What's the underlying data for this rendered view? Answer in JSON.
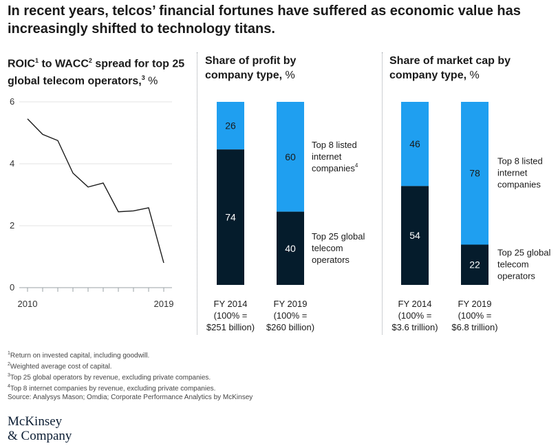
{
  "headline": "In recent years, telcos’ financial fortunes have suffered as economic value has increasingly shifted to technology titans.",
  "panels": {
    "roic": {
      "title_a": "ROIC",
      "sup_a": "1",
      "title_b": " to WACC",
      "sup_b": "2",
      "title_c": " spread for top 25 global telecom operators,",
      "sup_c": "3",
      "unit": " %"
    },
    "profit": {
      "title": "Share of profit by company type,",
      "unit": " %"
    },
    "marketcap": {
      "title": "Share of market cap by company type,",
      "unit": " %"
    }
  },
  "chart_data": [
    {
      "type": "line",
      "title": "ROIC to WACC spread for top 25 global telecom operators, %",
      "x": [
        2010,
        2011,
        2012,
        2013,
        2014,
        2015,
        2016,
        2017,
        2018,
        2019
      ],
      "y": [
        5.45,
        4.95,
        4.75,
        3.7,
        3.25,
        3.38,
        2.45,
        2.48,
        2.58,
        0.8
      ],
      "xticks": [
        "2010",
        "2019"
      ],
      "yticks": [
        0,
        2,
        4,
        6
      ],
      "ylim": [
        0,
        6
      ],
      "grid": true,
      "colors": {
        "line": "#1a1a1a",
        "grid": "#e3e3e3"
      }
    },
    {
      "type": "bar",
      "stacked": true,
      "title": "Share of profit by company type, %",
      "categories": [
        "FY 2014",
        "FY 2019"
      ],
      "category_notes": [
        [
          "(100% =",
          "$251 billion)"
        ],
        [
          "(100% =",
          "$260 billion)"
        ]
      ],
      "series": [
        {
          "name": "Top 25 global telecom operators",
          "values": [
            74,
            40
          ],
          "color": "#051c2c"
        },
        {
          "name": "Top 8 listed internet companies",
          "values": [
            26,
            60
          ],
          "color": "#1f9ff0"
        }
      ],
      "legend": {
        "top": [
          "Top 8 listed",
          "internet",
          "companies"
        ],
        "top_sup": "4",
        "bottom": [
          "Top 25 global",
          "telecom",
          "operators"
        ]
      }
    },
    {
      "type": "bar",
      "stacked": true,
      "title": "Share of market cap by company type, %",
      "categories": [
        "FY 2014",
        "FY 2019"
      ],
      "category_notes": [
        [
          "(100% =",
          "$3.6 trillion)"
        ],
        [
          "(100% =",
          "$6.8 trillion)"
        ]
      ],
      "series": [
        {
          "name": "Top 25 global telecom operators",
          "values": [
            54,
            22
          ],
          "color": "#051c2c"
        },
        {
          "name": "Top 8 listed internet companies",
          "values": [
            46,
            78
          ],
          "color": "#1f9ff0"
        }
      ],
      "legend": {
        "top": [
          "Top 8 listed",
          "internet",
          "companies"
        ],
        "top_sup": "",
        "bottom": [
          "Top 25 global",
          "telecom",
          "operators"
        ]
      }
    }
  ],
  "footnotes": [
    {
      "sup": "1",
      "text": "Return on invested capital, including goodwill."
    },
    {
      "sup": "2",
      "text": "Weighted average cost of capital."
    },
    {
      "sup": "3",
      "text": "Top 25 global operators by revenue, excluding private companies."
    },
    {
      "sup": "4",
      "text": "Top 8 internet companies by revenue, excluding private companies."
    }
  ],
  "source": " Source: Analysys Mason; Omdia; Corporate Performance Analytics by McKinsey",
  "logo": {
    "line1": "McKinsey",
    "line2": "& Company"
  }
}
